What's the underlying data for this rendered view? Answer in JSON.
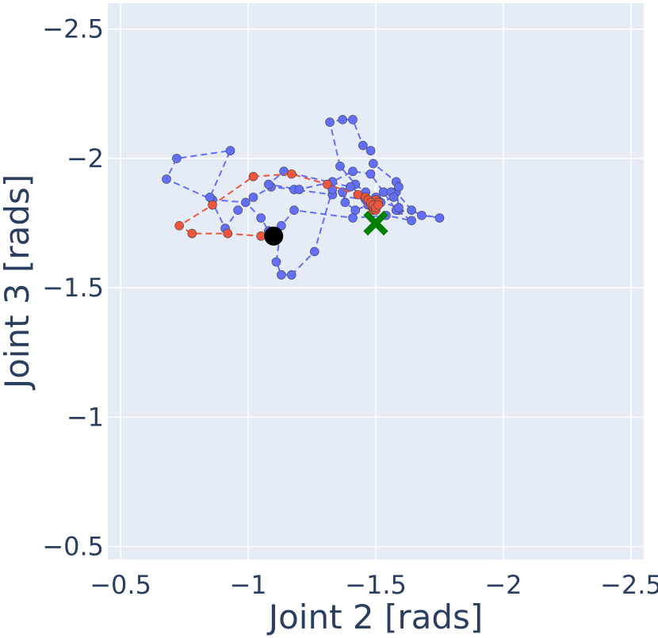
{
  "chart_data": {
    "type": "scatter",
    "xlabel": "Joint 2 [rads]",
    "ylabel": "Joint 3 [rads]",
    "xlim": [
      -0.45,
      -2.55
    ],
    "ylim": [
      -0.45,
      -2.6
    ],
    "x_reversed": true,
    "y_reversed": true,
    "grid": true,
    "plot_bgcolor": "#E5ECF6",
    "x_ticks": [
      -0.5,
      -1,
      -1.5,
      -2,
      -2.5
    ],
    "x_tick_labels": [
      "−0.5",
      "−1",
      "−1.5",
      "−2",
      "−2.5"
    ],
    "y_ticks": [
      -0.5,
      -1,
      -1.5,
      -2,
      -2.5
    ],
    "y_tick_labels": [
      "−0.5",
      "−1",
      "−1.5",
      "−2",
      "−2.5"
    ],
    "series": [
      {
        "color": "#636EFA",
        "mode": "lines+markers",
        "line_dash": "dash",
        "x": [
          -1.1,
          -1.08,
          -1.05,
          -0.99,
          -0.86,
          -0.68,
          -0.72,
          -0.93,
          -0.85,
          -0.91,
          -0.96,
          -1.02,
          -1.09,
          -1.18,
          -1.33,
          -1.46,
          -1.5,
          -1.53,
          -1.58,
          -1.64,
          -1.68,
          -1.75,
          -1.59,
          -1.58,
          -1.49,
          -1.48,
          -1.45,
          -1.41,
          -1.37,
          -1.32,
          -1.36,
          -1.42,
          -1.46,
          -1.5,
          -1.56,
          -1.59,
          -1.57,
          -1.52,
          -1.47,
          -1.42,
          -1.38,
          -1.37,
          -1.33,
          -1.26,
          -1.17,
          -1.13,
          -1.11,
          -1.13,
          -1.18,
          -1.41,
          -1.54,
          -1.64,
          -1.58,
          -1.48,
          -1.41,
          -1.33,
          -1.2,
          -1.08,
          -1.14,
          -1.4,
          -1.46,
          -1.59
        ],
        "y": [
          -1.7,
          -1.72,
          -1.77,
          -1.83,
          -1.84,
          -1.92,
          -2.0,
          -2.03,
          -1.85,
          -1.73,
          -1.8,
          -1.85,
          -1.89,
          -1.88,
          -1.86,
          -1.84,
          -1.82,
          -1.87,
          -1.87,
          -1.8,
          -1.78,
          -1.77,
          -1.8,
          -1.91,
          -1.98,
          -2.03,
          -2.05,
          -2.15,
          -2.15,
          -2.14,
          -1.97,
          -1.9,
          -1.87,
          -1.85,
          -1.87,
          -1.89,
          -1.85,
          -1.83,
          -1.82,
          -1.8,
          -1.83,
          -1.87,
          -1.88,
          -1.64,
          -1.55,
          -1.55,
          -1.6,
          -1.74,
          -1.8,
          -1.77,
          -1.78,
          -1.76,
          -1.8,
          -1.94,
          -1.95,
          -1.91,
          -1.88,
          -1.9,
          -1.95,
          -1.89,
          -1.85,
          -1.81
        ]
      },
      {
        "color": "#EF553B",
        "mode": "lines+markers",
        "line_dash": "dash",
        "x": [
          -1.1,
          -1.05,
          -0.92,
          -0.78,
          -0.73,
          -0.86,
          -1.02,
          -1.17,
          -1.31,
          -1.43,
          -1.46,
          -1.47,
          -1.48,
          -1.49,
          -1.5,
          -1.5,
          -1.5,
          -1.49,
          -1.48,
          -1.49,
          -1.5,
          -1.51,
          -1.5,
          -1.49,
          -1.5,
          -1.51
        ],
        "y": [
          -1.7,
          -1.7,
          -1.71,
          -1.71,
          -1.74,
          -1.82,
          -1.93,
          -1.94,
          -1.9,
          -1.86,
          -1.85,
          -1.84,
          -1.82,
          -1.83,
          -1.84,
          -1.82,
          -1.81,
          -1.8,
          -1.83,
          -1.81,
          -1.82,
          -1.83,
          -1.8,
          -1.82,
          -1.81,
          -1.82
        ]
      }
    ],
    "start_marker": {
      "x": -1.1,
      "y": -1.7,
      "symbol": "circle",
      "color": "#000000"
    },
    "goal_marker": {
      "x": -1.5,
      "y": -1.75,
      "symbol": "x",
      "color": "#008000"
    }
  }
}
